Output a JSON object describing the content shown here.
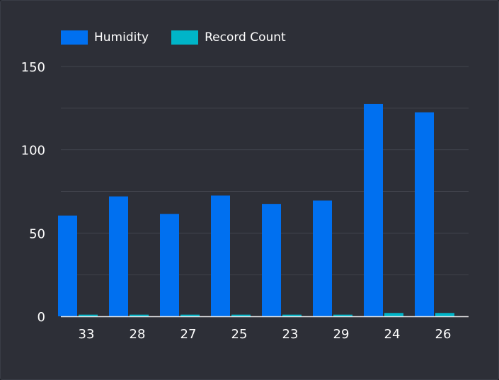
{
  "chart_data": {
    "type": "bar",
    "categories": [
      "33",
      "28",
      "27",
      "25",
      "23",
      "29",
      "24",
      "26"
    ],
    "series": [
      {
        "name": "Humidity",
        "color": "#0070f0",
        "values": [
          60.5,
          72,
          61.5,
          72.5,
          67.5,
          69.5,
          127.5,
          122.5
        ]
      },
      {
        "name": "Record Count",
        "color": "#00b5c8",
        "values": [
          1,
          1,
          1,
          1,
          1,
          1,
          2,
          2
        ]
      }
    ],
    "yticks": [
      0,
      50,
      100,
      150
    ],
    "ylim": [
      0,
      150
    ],
    "grid": true,
    "legend_position": "top-left"
  }
}
